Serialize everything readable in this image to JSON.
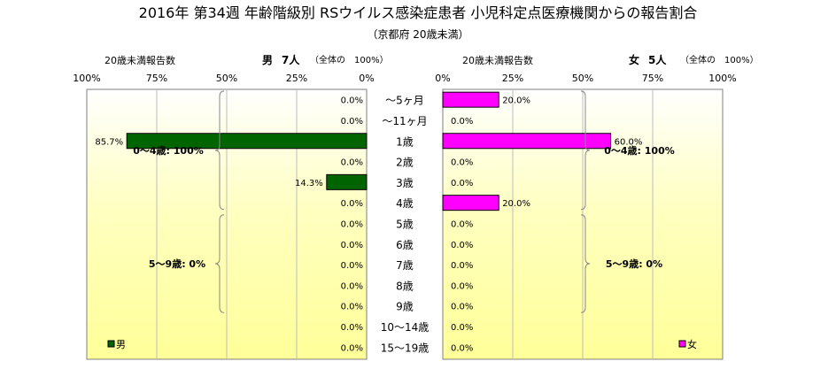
{
  "title": "2016年 第34週 年齢階級別 RSウイルス感染症患者 小児科定点医療機関からの報告割合",
  "subtitle": "（京都府 20歳未満）",
  "left_panel": {
    "header_left": "20歳未満報告数",
    "sex_label": "男",
    "count_label": "7人",
    "note": "（全体の　100%）",
    "ticks": [
      "100%",
      "75%",
      "50%",
      "25%",
      "0%"
    ],
    "legend": "男",
    "group_a": "0～4歳: 100%",
    "group_b": "5～9歳: 0%",
    "bar_color": "#006400"
  },
  "right_panel": {
    "header_left": "20歳未満報告数",
    "sex_label": "女",
    "count_label": "5人",
    "note": "（全体の　100%）",
    "ticks": [
      "0%",
      "25%",
      "50%",
      "75%",
      "100%"
    ],
    "legend": "女",
    "group_a": "0～4歳: 100%",
    "group_b": "5～9歳: 0%",
    "bar_color": "#ff00ff"
  },
  "chart_data": {
    "type": "bar",
    "orientation": "horizontal",
    "categories": [
      "～5ヶ月",
      "～11ヶ月",
      "1歳",
      "2歳",
      "3歳",
      "4歳",
      "5歳",
      "6歳",
      "7歳",
      "8歳",
      "9歳",
      "10～14歳",
      "15～19歳"
    ],
    "series": [
      {
        "name": "男",
        "values": [
          0.0,
          0.0,
          85.7,
          0.0,
          14.3,
          0.0,
          0.0,
          0.0,
          0.0,
          0.0,
          0.0,
          0.0,
          0.0
        ],
        "labels": [
          "0.0%",
          "0.0%",
          "85.7%",
          "0.0%",
          "14.3%",
          "0.0%",
          "0.0%",
          "0.0%",
          "0.0%",
          "0.0%",
          "0.0%",
          "0.0%",
          "0.0%"
        ]
      },
      {
        "name": "女",
        "values": [
          20.0,
          0.0,
          60.0,
          0.0,
          0.0,
          20.0,
          0.0,
          0.0,
          0.0,
          0.0,
          0.0,
          0.0,
          0.0
        ],
        "labels": [
          "20.0%",
          "0.0%",
          "60.0%",
          "0.0%",
          "0.0%",
          "20.0%",
          "0.0%",
          "0.0%",
          "0.0%",
          "0.0%",
          "0.0%",
          "0.0%",
          "0.0%"
        ]
      }
    ],
    "xlim": [
      0,
      100
    ],
    "grid": true,
    "legend_position": "bottom-left / bottom-right"
  }
}
